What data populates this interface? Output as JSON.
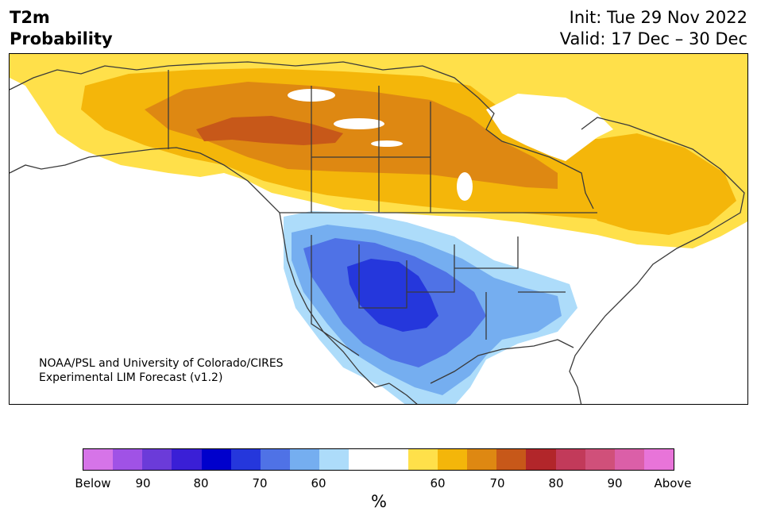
{
  "title": {
    "variable": "T2m",
    "subtitle": "Probability",
    "init": "Init: Tue 29 Nov 2022",
    "valid": "Valid: 17 Dec – 30 Dec"
  },
  "credit": {
    "line1": "NOAA/PSL and University of Colorado/CIRES",
    "line2": "Experimental LIM Forecast (v1.2)"
  },
  "colorbar": {
    "colors": [
      "#d674e8",
      "#a052e6",
      "#6b3bd9",
      "#3a1fd6",
      "#0000cc",
      "#2537dc",
      "#4f72e6",
      "#75aef0",
      "#addcfa",
      "#ffffff",
      "#ffffff",
      "#ffe04a",
      "#f4b60a",
      "#de8812",
      "#c75819",
      "#b2262a",
      "#c23a5a",
      "#d0507a",
      "#db5fa8",
      "#e874d9"
    ],
    "tick_labels": [
      "Below",
      "90",
      "80",
      "70",
      "60",
      "60",
      "70",
      "80",
      "90",
      "Above"
    ],
    "unit": "%"
  },
  "map": {
    "region": "North America",
    "colors": {
      "above_50": "#ffe04a",
      "above_60": "#f4b60a",
      "above_70": "#de8812",
      "above_75": "#c75819",
      "below_50": "#addcfa",
      "below_60": "#75aef0",
      "below_70": "#4f72e6",
      "below_75": "#2537dc",
      "coastline": "#3a3a3a"
    }
  }
}
